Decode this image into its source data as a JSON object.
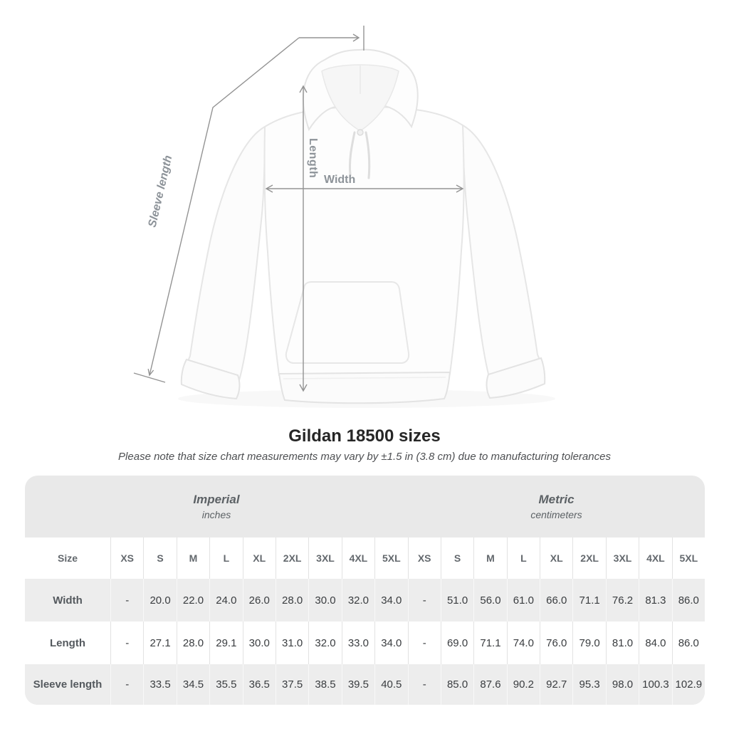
{
  "title": "Gildan 18500 sizes",
  "subtitle": "Please note that size chart measurements may vary by ±1.5 in (3.8 cm) due to manufacturing tolerances",
  "diagram": {
    "labels": {
      "length": "Length",
      "width": "Width",
      "sleeve": "Sleeve length"
    },
    "line_color": "#939393",
    "label_color": "#8d9399"
  },
  "table": {
    "groups": [
      {
        "label": "Imperial",
        "sublabel": "inches"
      },
      {
        "label": "Metric",
        "sublabel": "centimeters"
      }
    ],
    "size_label": "Size",
    "sizes": [
      "XS",
      "S",
      "M",
      "L",
      "XL",
      "2XL",
      "3XL",
      "4XL",
      "5XL"
    ],
    "rows": [
      {
        "label": "Width",
        "imperial": [
          "-",
          "20.0",
          "22.0",
          "24.0",
          "26.0",
          "28.0",
          "30.0",
          "32.0",
          "34.0"
        ],
        "metric": [
          "-",
          "51.0",
          "56.0",
          "61.0",
          "66.0",
          "71.1",
          "76.2",
          "81.3",
          "86.0"
        ]
      },
      {
        "label": "Length",
        "imperial": [
          "-",
          "27.1",
          "28.0",
          "29.1",
          "30.0",
          "31.0",
          "32.0",
          "33.0",
          "34.0"
        ],
        "metric": [
          "-",
          "69.0",
          "71.1",
          "74.0",
          "76.0",
          "79.0",
          "81.0",
          "84.0",
          "86.0"
        ]
      },
      {
        "label": "Sleeve length",
        "imperial": [
          "-",
          "33.5",
          "34.5",
          "35.5",
          "36.5",
          "37.5",
          "38.5",
          "39.5",
          "40.5"
        ],
        "metric": [
          "-",
          "85.0",
          "87.6",
          "90.2",
          "92.7",
          "95.3",
          "98.0",
          "100.3",
          "102.9"
        ]
      }
    ]
  },
  "chart_data": {
    "type": "table",
    "title": "Gildan 18500 sizes",
    "note": "Measurements may vary by ±1.5 in (3.8 cm) due to manufacturing tolerances",
    "column_groups": [
      "Imperial (inches)",
      "Metric (centimeters)"
    ],
    "columns": [
      "XS",
      "S",
      "M",
      "L",
      "XL",
      "2XL",
      "3XL",
      "4XL",
      "5XL"
    ],
    "rows": [
      {
        "measure": "Width",
        "imperial_in": [
          null,
          20.0,
          22.0,
          24.0,
          26.0,
          28.0,
          30.0,
          32.0,
          34.0
        ],
        "metric_cm": [
          null,
          51.0,
          56.0,
          61.0,
          66.0,
          71.1,
          76.2,
          81.3,
          86.0
        ]
      },
      {
        "measure": "Length",
        "imperial_in": [
          null,
          27.1,
          28.0,
          29.1,
          30.0,
          31.0,
          32.0,
          33.0,
          34.0
        ],
        "metric_cm": [
          null,
          69.0,
          71.1,
          74.0,
          76.0,
          79.0,
          81.0,
          84.0,
          86.0
        ]
      },
      {
        "measure": "Sleeve length",
        "imperial_in": [
          null,
          33.5,
          34.5,
          35.5,
          36.5,
          37.5,
          38.5,
          39.5,
          40.5
        ],
        "metric_cm": [
          null,
          85.0,
          87.6,
          90.2,
          92.7,
          95.3,
          98.0,
          100.3,
          102.9
        ]
      }
    ]
  }
}
